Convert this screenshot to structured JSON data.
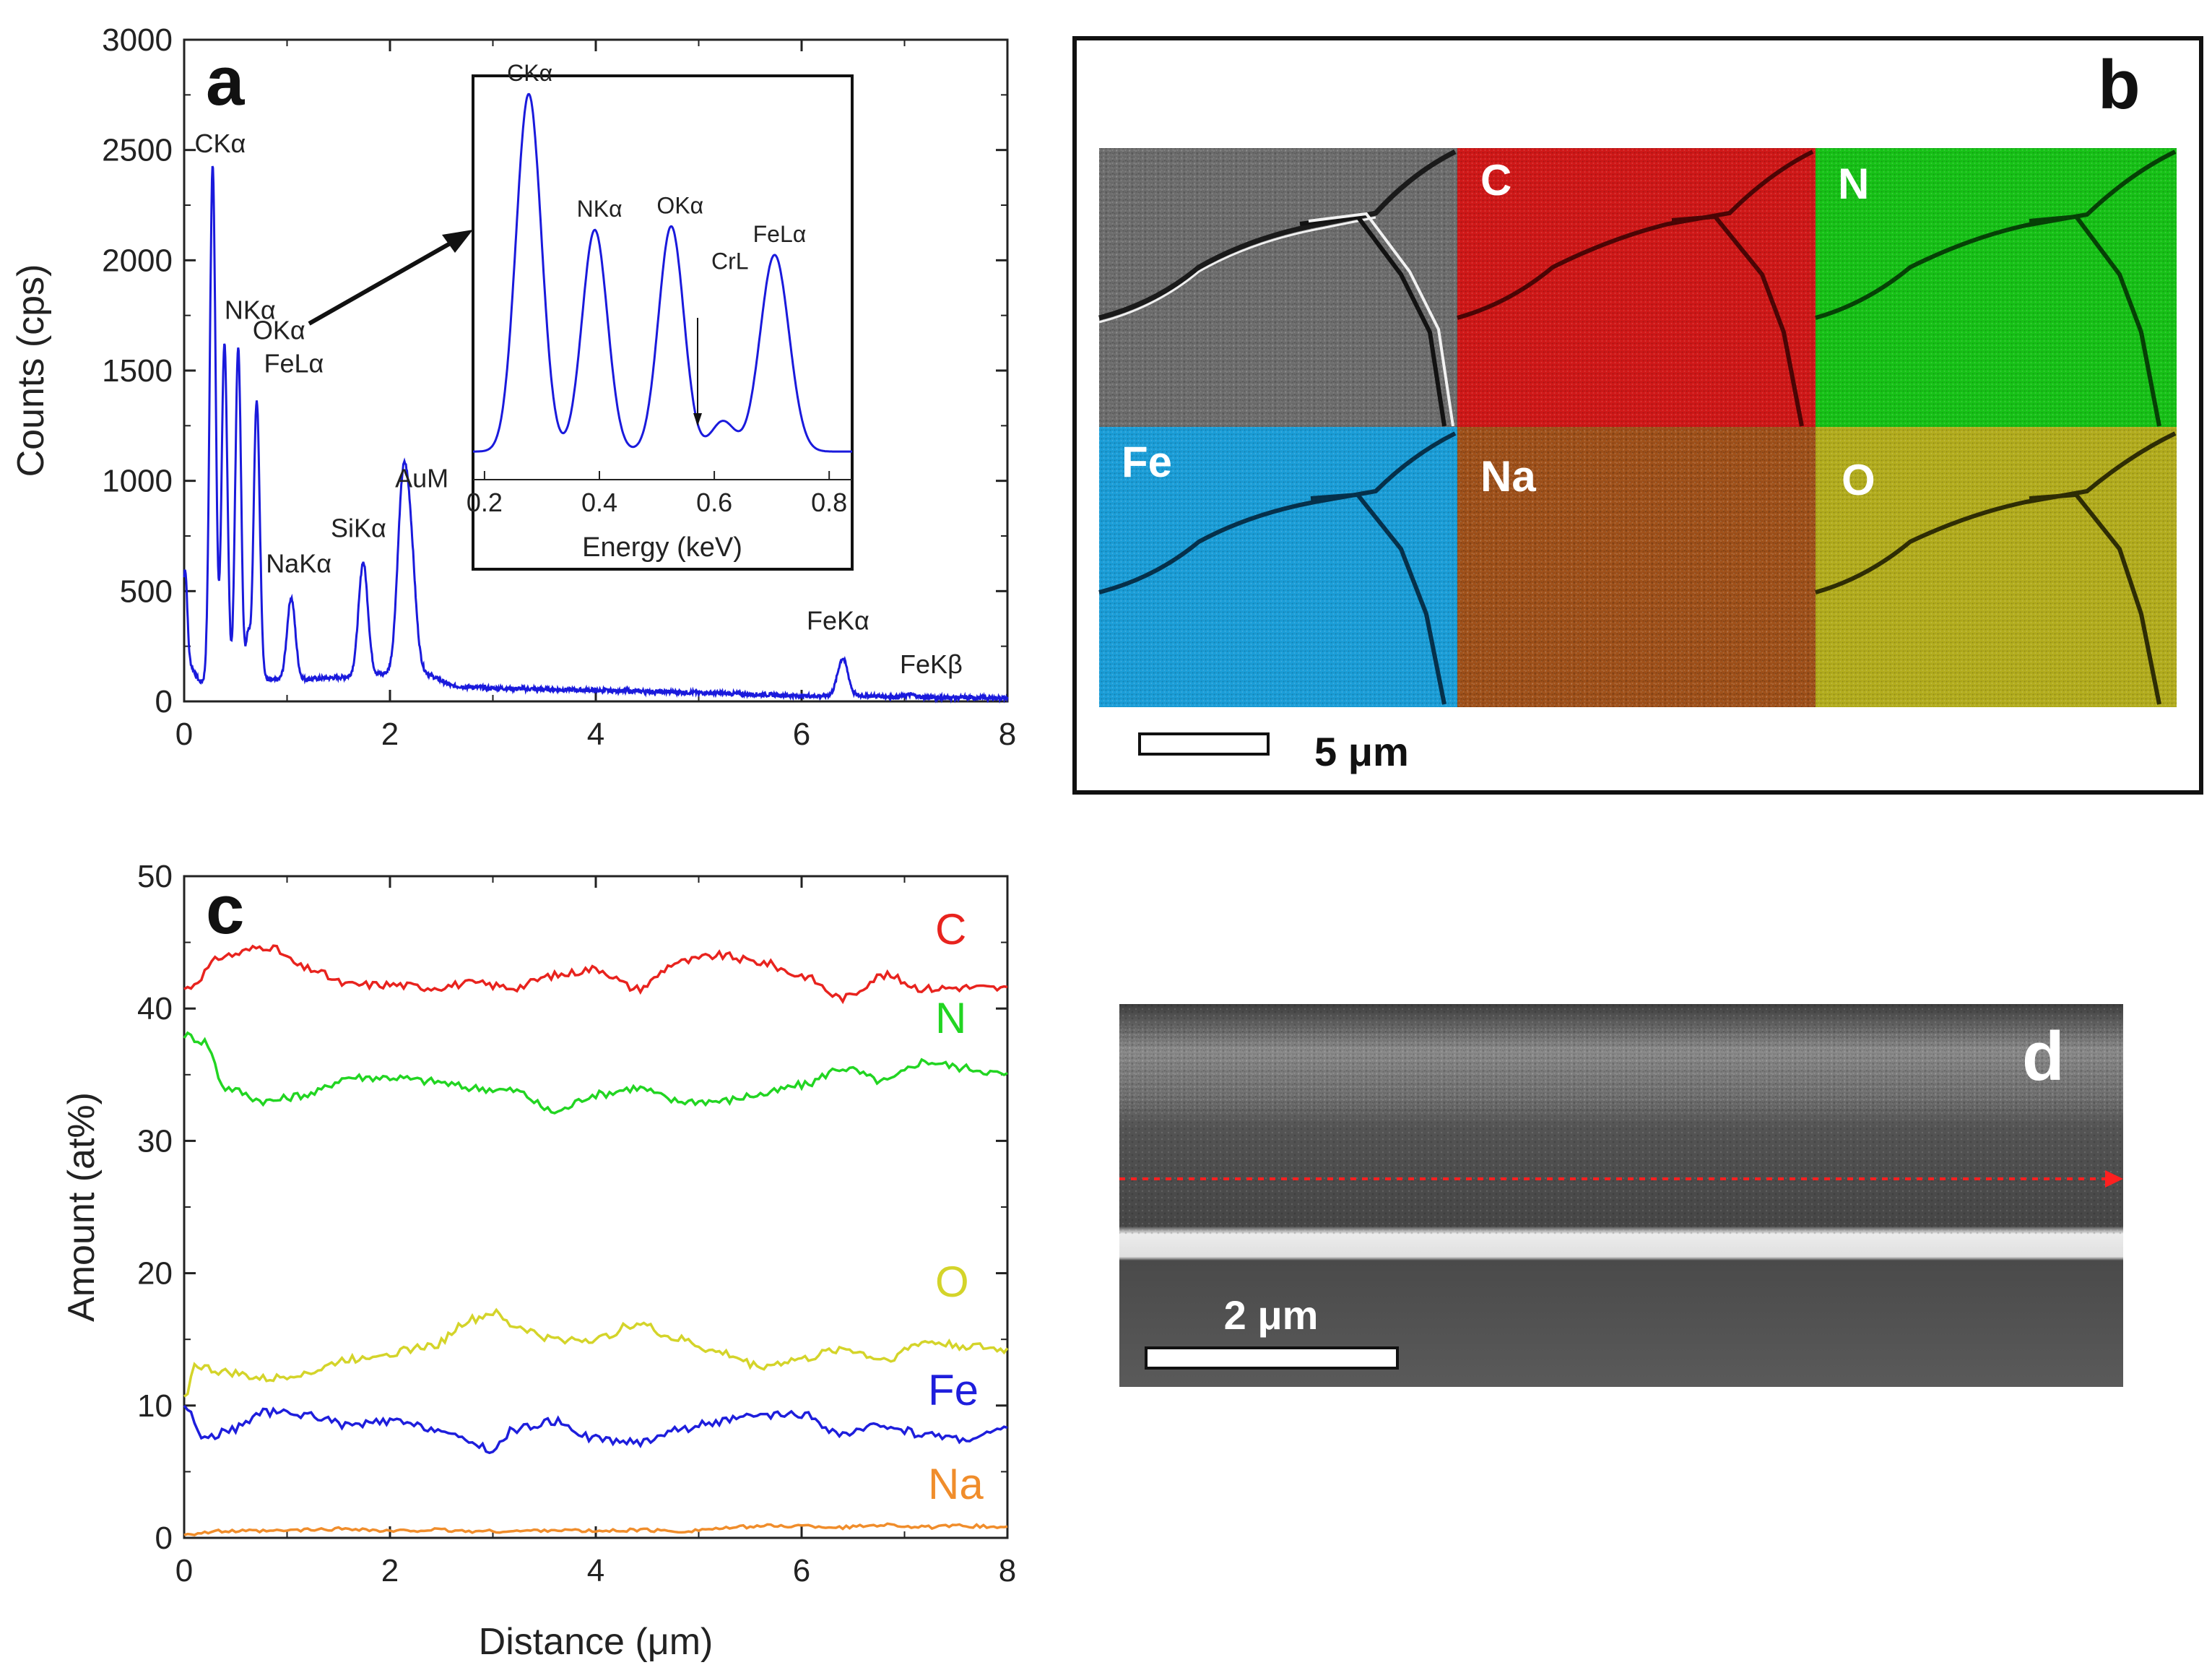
{
  "chart_data": [
    {
      "panel": "a",
      "type": "line",
      "xlabel": "",
      "ylabel": "Counts (cps)",
      "xlim": [
        0,
        8
      ],
      "ylim": [
        0,
        3000
      ],
      "xticks": [
        "0",
        "2",
        "4",
        "6",
        "8"
      ],
      "yticks": [
        "0",
        "500",
        "1000",
        "1500",
        "2000",
        "2500",
        "3000"
      ],
      "color": "#1a1adc",
      "baseline_points": [
        [
          0,
          220
        ],
        [
          0.15,
          90
        ],
        [
          1.15,
          100
        ],
        [
          1.55,
          110
        ],
        [
          2.3,
          140
        ],
        [
          2.6,
          70
        ],
        [
          3,
          60
        ],
        [
          4,
          50
        ],
        [
          5,
          40
        ],
        [
          6,
          25
        ],
        [
          6.3,
          25
        ],
        [
          6.65,
          25
        ],
        [
          7,
          20
        ],
        [
          8,
          15
        ]
      ],
      "peaks": [
        {
          "label": "CKα",
          "x": 0.277,
          "y": 2440,
          "w": 0.028
        },
        {
          "label": "NKα",
          "x": 0.392,
          "y": 1620,
          "w": 0.028
        },
        {
          "label": "OKα",
          "x": 0.525,
          "y": 1610,
          "w": 0.028
        },
        {
          "label": "FeLα",
          "x": 0.705,
          "y": 1360,
          "w": 0.03
        },
        {
          "label": "NaKα",
          "x": 1.04,
          "y": 470,
          "w": 0.04
        },
        {
          "label": "SiKα",
          "x": 1.74,
          "y": 630,
          "w": 0.045
        },
        {
          "label": "AuM",
          "x": 2.12,
          "y": 890,
          "w": 0.05
        },
        {
          "label": "FeKα",
          "x": 6.4,
          "y": 195,
          "w": 0.05
        },
        {
          "label": "FeKβ",
          "x": 7.06,
          "y": 30,
          "w": 0.05
        }
      ],
      "extra_peaks": [
        {
          "x": 0.01,
          "y": 600,
          "w": 0.02
        },
        {
          "x": 2.2,
          "y": 650,
          "w": 0.05
        },
        {
          "x": 0.62,
          "y": 300,
          "w": 0.02
        }
      ],
      "inset": {
        "xlabel": "Energy (keV)",
        "xlim": [
          0.18,
          0.84
        ],
        "xticks": [
          "0.2",
          "0.4",
          "0.6",
          "0.8"
        ],
        "peaks": [
          {
            "label": "CKα",
            "x": 0.277,
            "rel": 1.0,
            "w": 0.022
          },
          {
            "label": "NKα",
            "x": 0.392,
            "rel": 0.62,
            "w": 0.022
          },
          {
            "label": "OKα",
            "x": 0.525,
            "rel": 0.63,
            "w": 0.022
          },
          {
            "label": "CrL",
            "x": 0.615,
            "rel": 0.085,
            "w": 0.02
          },
          {
            "label": "FeLα",
            "x": 0.705,
            "rel": 0.55,
            "w": 0.025
          }
        ]
      }
    },
    {
      "panel": "c",
      "type": "line",
      "xlabel": "Distance (μm)",
      "ylabel": "Amount (at%)",
      "xlim": [
        0,
        8
      ],
      "ylim": [
        0,
        50
      ],
      "xticks": [
        "0",
        "2",
        "4",
        "6",
        "8"
      ],
      "yticks": [
        "0",
        "10",
        "20",
        "30",
        "40",
        "50"
      ],
      "series": [
        {
          "name": "C",
          "color": "#e8231e",
          "x": [
            0,
            0.4,
            0.8,
            1.2,
            1.6,
            2.0,
            2.4,
            2.8,
            3.2,
            3.6,
            4.0,
            4.4,
            4.8,
            5.2,
            5.6,
            6.0,
            6.4,
            6.8,
            7.2,
            7.6,
            8.0
          ],
          "y": [
            41.5,
            44,
            44.7,
            43,
            41.8,
            41.8,
            41.6,
            41.9,
            41.6,
            42.5,
            43,
            41.5,
            43.5,
            44,
            43.5,
            42.5,
            40.8,
            42.5,
            41.5,
            41.6,
            41.5
          ]
        },
        {
          "name": "N",
          "color": "#22d522",
          "x": [
            0,
            0.2,
            0.4,
            0.8,
            1.2,
            1.6,
            2.0,
            2.4,
            2.8,
            3.2,
            3.6,
            4.0,
            4.4,
            4.8,
            5.2,
            5.6,
            6.0,
            6.4,
            6.8,
            7.2,
            7.6,
            8.0
          ],
          "y": [
            38,
            37.5,
            34,
            33,
            33.5,
            34.8,
            34.8,
            34.5,
            34,
            33.8,
            32.2,
            33.5,
            34,
            33,
            33,
            33.5,
            34.2,
            35.5,
            34.5,
            36,
            35.5,
            35
          ]
        },
        {
          "name": "O",
          "color": "#d4d42a",
          "x": [
            0,
            0.1,
            0.4,
            0.8,
            1.2,
            1.6,
            2.0,
            2.4,
            2.8,
            3.0,
            3.2,
            3.6,
            4.0,
            4.4,
            4.8,
            5.2,
            5.6,
            6.0,
            6.4,
            6.8,
            7.2,
            7.6,
            8.0
          ],
          "y": [
            10.5,
            13,
            12.5,
            12,
            12.5,
            13.5,
            14,
            14.5,
            16.5,
            17,
            16,
            15,
            15,
            16.2,
            15,
            14,
            13,
            13.5,
            14.3,
            13.5,
            14.8,
            14.5,
            14.2
          ]
        },
        {
          "name": "Fe",
          "color": "#1e1edc",
          "x": [
            0,
            0.2,
            0.4,
            0.8,
            1.2,
            1.6,
            2.0,
            2.4,
            2.8,
            3.0,
            3.2,
            3.6,
            4.0,
            4.4,
            4.8,
            5.2,
            5.6,
            6.0,
            6.4,
            6.8,
            7.2,
            7.6,
            8.0
          ],
          "y": [
            10,
            7.5,
            8,
            9.5,
            9.3,
            8.5,
            8.8,
            8.3,
            7.2,
            6.6,
            8.2,
            8.8,
            7.5,
            7.2,
            8.2,
            8.8,
            9.2,
            9.3,
            7.8,
            8.5,
            7.8,
            7.5,
            8.2
          ]
        },
        {
          "name": "Na",
          "color": "#f08d2b",
          "x": [
            0,
            0.4,
            0.8,
            1.2,
            1.6,
            2.0,
            2.4,
            2.8,
            3.2,
            3.6,
            4.0,
            4.4,
            4.8,
            5.2,
            5.6,
            6.0,
            6.4,
            6.8,
            7.2,
            7.6,
            8.0
          ],
          "y": [
            0.3,
            0.5,
            0.5,
            0.6,
            0.7,
            0.5,
            0.6,
            0.5,
            0.5,
            0.6,
            0.5,
            0.6,
            0.5,
            0.7,
            0.9,
            0.9,
            0.8,
            1.0,
            0.8,
            0.9,
            0.8
          ]
        }
      ]
    }
  ],
  "panel_labels": {
    "a": "a",
    "b": "b",
    "c": "c",
    "d": "d"
  },
  "maps": {
    "C": "C",
    "N": "N",
    "Fe": "Fe",
    "Na": "Na",
    "O": "O",
    "colors": {
      "sem": "#6e6e6e",
      "C": "#d01818",
      "N": "#17c217",
      "Fe": "#1b9ed8",
      "Na": "#a0511a",
      "O": "#b3ad1e"
    },
    "scale_bar": "5 μm"
  },
  "cross_section": {
    "scale_bar": "2 μm",
    "arrow_color": "#ff2020"
  }
}
